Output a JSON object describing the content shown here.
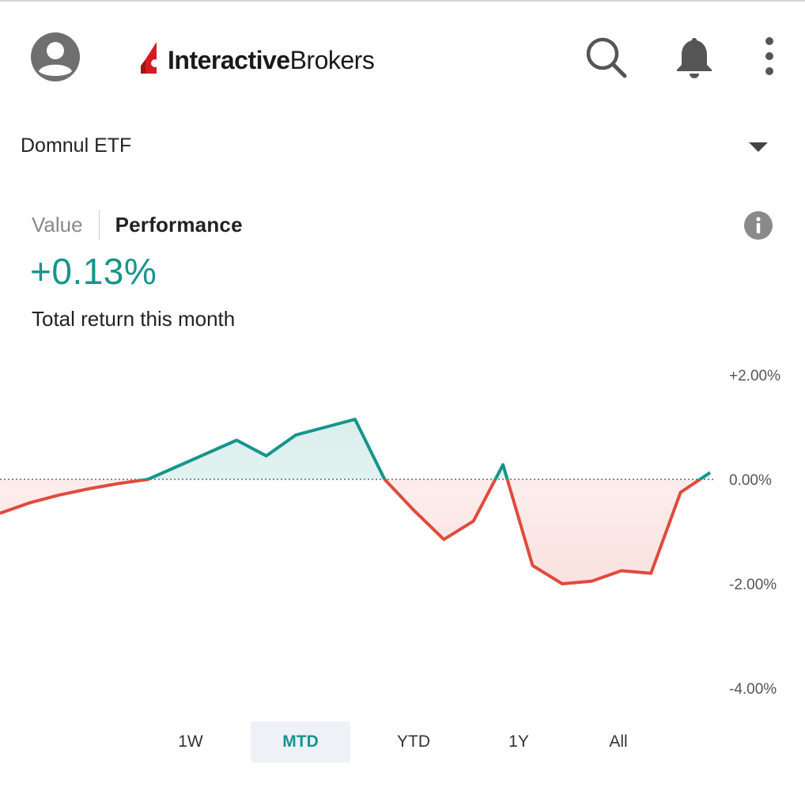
{
  "header": {
    "brand_bold": "Interactive",
    "brand_light": "Brokers",
    "icons": [
      "account-icon",
      "search-icon",
      "bell-icon",
      "more-vert-icon"
    ]
  },
  "account": {
    "name": "Domnul ETF"
  },
  "tabs": {
    "value_label": "Value",
    "performance_label": "Performance",
    "selected": "Performance"
  },
  "summary": {
    "return_value": "+0.13%",
    "return_label": "Total return this month"
  },
  "colors": {
    "positive": "#16958b",
    "negative": "#e04b3c",
    "brand": "#d71920"
  },
  "chart_data": {
    "type": "line",
    "yticks": [
      "+2.00%",
      "0.00%",
      "-2.00%",
      "-4.00%"
    ],
    "yvalues_for_ticks": [
      2,
      0,
      -2,
      -4
    ],
    "ylim": [
      -4,
      2
    ],
    "baseline": 0,
    "series": [
      {
        "values": [
          -0.65,
          -0.45,
          -0.3,
          -0.18,
          -0.08,
          0.0,
          0.25,
          0.5,
          0.75,
          0.45,
          0.85,
          1.0,
          1.15,
          0.0,
          -0.6,
          -1.15,
          -0.8,
          0.28,
          -1.65,
          -2.0,
          -1.95,
          -1.75,
          -1.8,
          -0.25,
          0.13
        ]
      }
    ]
  },
  "ranges": {
    "items": [
      "1W",
      "MTD",
      "YTD",
      "1Y",
      "All"
    ],
    "selected": "MTD"
  }
}
